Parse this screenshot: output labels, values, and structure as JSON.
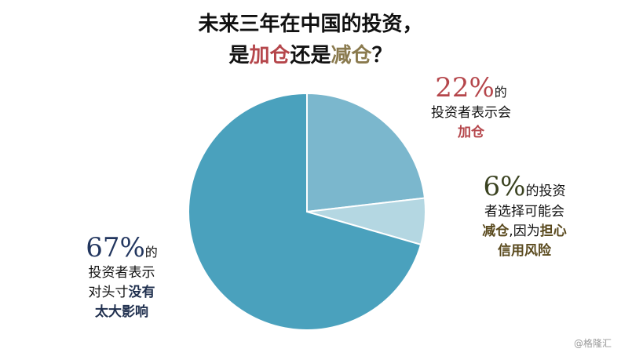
{
  "title": {
    "line1": "未来三年在中国的投资，",
    "line2_a": "是",
    "line2_b": "加仓",
    "line2_c": "还是",
    "line2_d": "减仓",
    "line2_e": "？"
  },
  "chart_data": {
    "type": "pie",
    "start_angle_deg": 0,
    "direction": "clockwise",
    "slices": [
      {
        "name": "加仓",
        "value": 22,
        "color": "#7bb7cd"
      },
      {
        "name": "减仓",
        "value": 6,
        "color": "#b4d7e2"
      },
      {
        "name": "没有太大影响",
        "value": 67,
        "color": "#4aa1bd"
      }
    ]
  },
  "labels": {
    "increase": {
      "pct": "22%",
      "pct_suffix": "的",
      "line1": "投资者表示会",
      "kw": "加仓"
    },
    "decrease": {
      "pct": "6%",
      "pct_suffix": "的投资",
      "line1": "者选择可能会",
      "kw1": "减仓",
      "mid": ",因为",
      "kw2": "担心",
      "kw3": "信用风险"
    },
    "no_change": {
      "pct": "67%",
      "pct_suffix": "的",
      "line1": "投资者表示",
      "line2": "对头寸",
      "kw1": "没有",
      "kw2": "太大影响"
    }
  },
  "watermark": "@格隆汇"
}
